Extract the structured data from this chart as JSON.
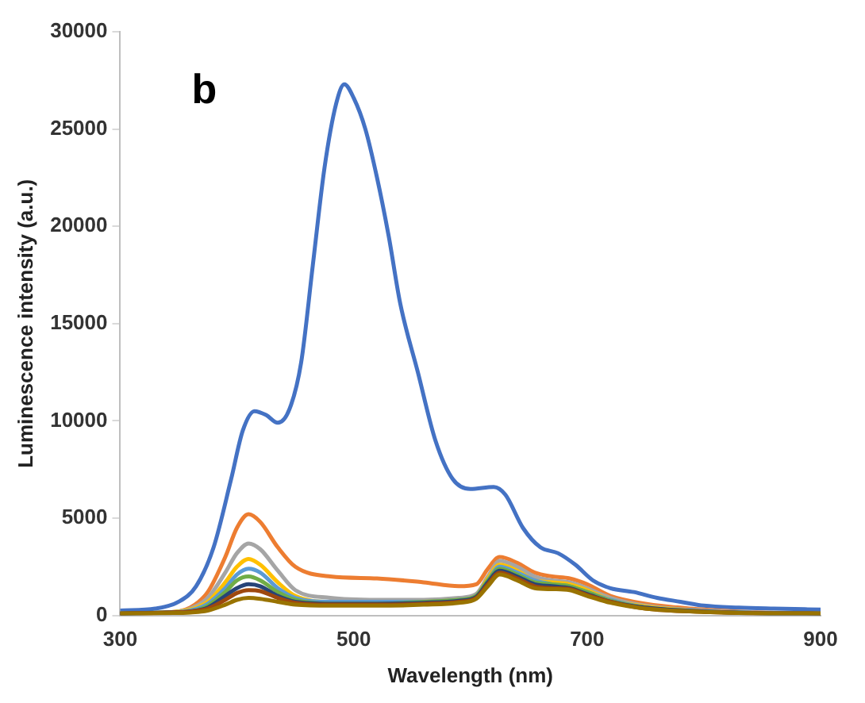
{
  "chart_data": {
    "type": "line",
    "xlabel": "Wavelength (nm)",
    "ylabel": "Luminescence intensity (a.u.)",
    "annotations": [
      "b"
    ],
    "xlim": [
      300,
      900
    ],
    "xticks": [
      300,
      500,
      700,
      900
    ],
    "ylim": [
      0,
      30000
    ],
    "yticks": [
      0,
      5000,
      10000,
      15000,
      20000,
      25000,
      30000
    ],
    "grid": false,
    "legend": false,
    "marker": "none",
    "line_style": "solid",
    "series": [
      {
        "color": "#4472c4",
        "x": [
          300,
          330,
          350,
          365,
          380,
          395,
          405,
          415,
          425,
          435,
          445,
          455,
          465,
          475,
          485,
          492,
          500,
          510,
          520,
          530,
          540,
          555,
          570,
          585,
          600,
          620,
          630,
          645,
          660,
          675,
          690,
          705,
          720,
          740,
          760,
          780,
          800,
          830,
          860,
          900
        ],
        "values": [
          250,
          350,
          700,
          1500,
          3500,
          7000,
          9500,
          10500,
          10300,
          9900,
          10600,
          13000,
          18000,
          23000,
          26300,
          27300,
          26600,
          25000,
          22500,
          19500,
          16000,
          12500,
          9000,
          7000,
          6500,
          6600,
          6200,
          4500,
          3500,
          3200,
          2600,
          1800,
          1400,
          1200,
          900,
          700,
          500,
          400,
          350,
          300
        ]
      },
      {
        "color": "#ed7d31",
        "x": [
          300,
          340,
          360,
          375,
          390,
          400,
          410,
          420,
          435,
          450,
          480,
          520,
          560,
          590,
          605,
          615,
          625,
          640,
          655,
          670,
          685,
          700,
          720,
          750,
          800,
          850,
          900
        ],
        "values": [
          100,
          150,
          400,
          1200,
          3000,
          4500,
          5200,
          4800,
          3500,
          2500,
          2000,
          1900,
          1700,
          1500,
          1600,
          2400,
          3000,
          2700,
          2200,
          2000,
          1900,
          1600,
          1000,
          600,
          300,
          150,
          100
        ]
      },
      {
        "color": "#a5a5a5",
        "x": [
          300,
          340,
          360,
          375,
          390,
          400,
          410,
          420,
          435,
          450,
          480,
          520,
          560,
          590,
          605,
          615,
          625,
          640,
          655,
          670,
          685,
          700,
          720,
          750,
          800,
          850,
          900
        ],
        "values": [
          100,
          150,
          350,
          900,
          2200,
          3200,
          3700,
          3400,
          2300,
          1300,
          900,
          800,
          800,
          900,
          1100,
          2000,
          2800,
          2500,
          2000,
          1800,
          1700,
          1400,
          900,
          500,
          250,
          150,
          100
        ]
      },
      {
        "color": "#ffc000",
        "x": [
          300,
          340,
          360,
          375,
          390,
          400,
          410,
          420,
          435,
          450,
          480,
          520,
          560,
          590,
          605,
          615,
          625,
          640,
          655,
          670,
          685,
          700,
          720,
          750,
          800
        ],
        "values": [
          100,
          150,
          300,
          700,
          1700,
          2500,
          2900,
          2600,
          1700,
          1000,
          700,
          700,
          700,
          800,
          1000,
          1900,
          2600,
          2300,
          1800,
          1700,
          1600,
          1300,
          800,
          450,
          200
        ]
      },
      {
        "color": "#5b9bd5",
        "x": [
          300,
          340,
          360,
          375,
          390,
          400,
          410,
          420,
          435,
          450,
          480,
          520,
          560,
          590,
          605,
          615,
          625,
          640,
          655,
          670,
          685,
          700,
          720,
          750,
          800,
          850,
          900
        ],
        "values": [
          100,
          150,
          250,
          600,
          1400,
          2100,
          2400,
          2200,
          1400,
          900,
          700,
          700,
          700,
          800,
          1000,
          1800,
          2500,
          2200,
          1800,
          1600,
          1500,
          1200,
          800,
          400,
          200,
          120,
          100
        ]
      },
      {
        "color": "#70ad47",
        "x": [
          300,
          340,
          360,
          375,
          390,
          400,
          410,
          420,
          435,
          450,
          480,
          520,
          560,
          590,
          605,
          615,
          625,
          640,
          655,
          670,
          685,
          700,
          720,
          750,
          800,
          850,
          900
        ],
        "values": [
          100,
          150,
          200,
          500,
          1200,
          1800,
          2000,
          1800,
          1200,
          800,
          600,
          600,
          700,
          800,
          1000,
          1800,
          2400,
          2100,
          1700,
          1600,
          1500,
          1200,
          750,
          400,
          200,
          120,
          100
        ]
      },
      {
        "color": "#264478",
        "x": [
          300,
          340,
          360,
          375,
          390,
          400,
          410,
          420,
          435,
          450,
          480,
          520,
          560,
          590,
          605,
          615,
          625,
          640,
          655,
          670,
          685,
          700,
          720,
          750,
          800,
          850,
          900
        ],
        "values": [
          100,
          150,
          200,
          400,
          1000,
          1400,
          1600,
          1500,
          1000,
          700,
          600,
          600,
          650,
          750,
          950,
          1700,
          2300,
          2000,
          1600,
          1500,
          1400,
          1100,
          700,
          400,
          200,
          120,
          100
        ]
      },
      {
        "color": "#9e480e",
        "x": [
          300,
          340,
          360,
          375,
          390,
          400,
          410,
          420,
          435,
          450,
          480,
          520,
          560,
          590,
          605,
          615,
          625,
          640,
          655,
          670,
          685,
          700,
          720,
          750,
          800,
          850,
          900
        ],
        "values": [
          100,
          150,
          200,
          350,
          800,
          1150,
          1300,
          1250,
          900,
          650,
          550,
          550,
          600,
          700,
          900,
          1600,
          2200,
          1900,
          1500,
          1400,
          1350,
          1050,
          700,
          350,
          180,
          110,
          100
        ]
      },
      {
        "color": "#997300",
        "x": [
          300,
          340,
          360,
          375,
          390,
          400,
          410,
          420,
          435,
          450,
          480,
          520,
          560,
          590,
          605,
          615,
          625,
          640,
          655,
          670,
          685,
          700,
          720,
          750,
          800,
          850,
          900
        ],
        "values": [
          100,
          120,
          150,
          250,
          550,
          800,
          900,
          850,
          700,
          550,
          500,
          500,
          550,
          650,
          850,
          1500,
          2100,
          1800,
          1400,
          1350,
          1300,
          1000,
          650,
          350,
          180,
          110,
          100
        ]
      }
    ]
  }
}
